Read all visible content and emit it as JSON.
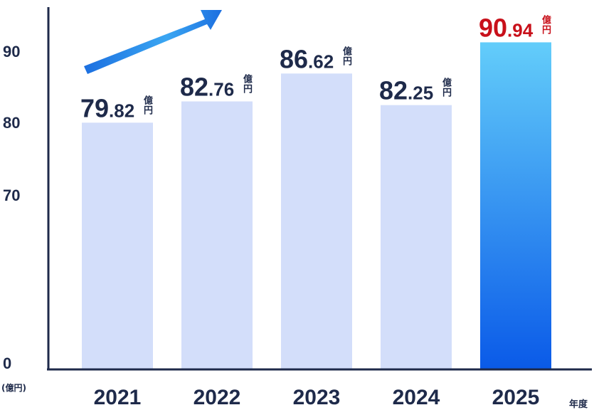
{
  "chart_data": {
    "type": "bar",
    "categories": [
      "2021",
      "2022",
      "2023",
      "2024",
      "2025"
    ],
    "values": [
      79.82,
      82.76,
      86.62,
      82.25,
      90.94
    ],
    "value_labels": [
      {
        "int": "79",
        "dec": ".82",
        "unit_top": "億",
        "unit_bottom": "円"
      },
      {
        "int": "82",
        "dec": ".76",
        "unit_top": "億",
        "unit_bottom": "円"
      },
      {
        "int": "86",
        "dec": ".62",
        "unit_top": "億",
        "unit_bottom": "円"
      },
      {
        "int": "82",
        "dec": ".25",
        "unit_top": "億",
        "unit_bottom": "円"
      },
      {
        "int": "90",
        "dec": ".94",
        "unit_top": "億",
        "unit_bottom": "円"
      }
    ],
    "y_ticks": [
      "90",
      "80",
      "70",
      "0"
    ],
    "y_unit": "(億円)",
    "x_unit": "年度",
    "y_axis_break": true,
    "trend_arrow": "up-right",
    "highlight_index": 4,
    "colors": {
      "bar": "#d3defa",
      "highlight_top": "#63cdfa",
      "highlight_bottom": "#0a5ae8",
      "text": "#1e2a4a",
      "highlight_text": "#c8101a",
      "axis": "#1e2a4a"
    }
  }
}
